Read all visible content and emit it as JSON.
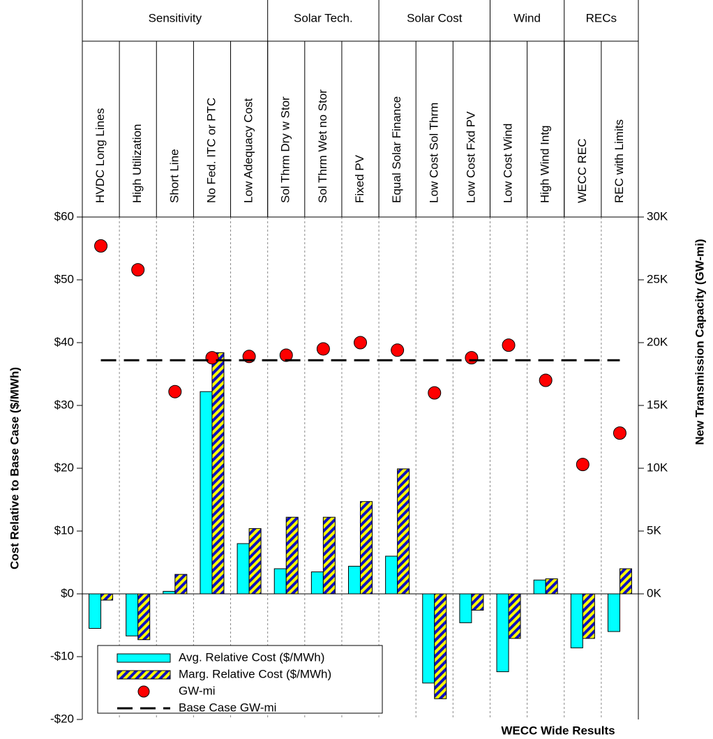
{
  "chart_data": {
    "type": "bar",
    "x_label": "WECC Wide Results",
    "y_label": "Cost Relative to Base Case ($/MWh)",
    "y2_label": "New Transmission Capacity (GW-mi)",
    "groups": [
      {
        "name": "Sensitivity",
        "span": 5
      },
      {
        "name": "Solar Tech.",
        "span": 3
      },
      {
        "name": "Solar Cost",
        "span": 3
      },
      {
        "name": "Wind",
        "span": 2
      },
      {
        "name": "RECs",
        "span": 2
      }
    ],
    "categories": [
      "HVDC Long Lines",
      "High Utilization",
      "Short Line",
      "No Fed. ITC or PTC",
      "Low Adequacy Cost",
      "Sol Thrm Dry w Stor",
      "Sol Thrm Wet no Stor",
      "Fixed PV",
      "Equal Solar Finance",
      "Low Cost Sol Thrm",
      "Low Cost Fxd PV",
      "Low Cost Wind",
      "High Wind Intg",
      "WECC REC",
      "REC with Limits"
    ],
    "series": [
      {
        "name": "Avg. Relative Cost ($/MWh)",
        "kind": "bar",
        "color": "#00ffff",
        "values": [
          -5.5,
          -6.7,
          0.4,
          32.2,
          8.0,
          4.0,
          3.5,
          4.4,
          6.0,
          -14.2,
          -4.6,
          -12.4,
          2.2,
          -8.6,
          -6.0
        ]
      },
      {
        "name": "Marg. Relative Cost ($/MWh)",
        "kind": "hatched-bar",
        "color": "#ffff00",
        "hatch_color": "#1010c0",
        "values": [
          -1.0,
          -7.3,
          3.1,
          38.4,
          10.4,
          12.2,
          12.2,
          14.7,
          19.9,
          -16.7,
          -2.6,
          -7.1,
          2.4,
          -7.1,
          4.0
        ]
      },
      {
        "name": "GW-mi",
        "kind": "dot",
        "axis": "y2",
        "color": "#ff0000",
        "values": [
          27700,
          25800,
          16100,
          18800,
          18900,
          19000,
          19500,
          20000,
          19400,
          16000,
          18800,
          19800,
          17000,
          10300,
          12800
        ]
      },
      {
        "name": "Base Case GW-mi",
        "kind": "hline",
        "axis": "y2",
        "color": "#000000",
        "value": 18600
      }
    ],
    "ylim": [
      -20,
      60
    ],
    "yticks": [
      {
        "value": -20,
        "label": "-$20"
      },
      {
        "value": -10,
        "label": "-$10"
      },
      {
        "value": 0,
        "label": "$0"
      },
      {
        "value": 10,
        "label": "$10"
      },
      {
        "value": 20,
        "label": "$20"
      },
      {
        "value": 30,
        "label": "$30"
      },
      {
        "value": 40,
        "label": "$40"
      },
      {
        "value": 50,
        "label": "$50"
      },
      {
        "value": 60,
        "label": "$60"
      }
    ],
    "y2lim": [
      -10000,
      30000
    ],
    "y2ticks": [
      {
        "value": 0,
        "label": "0K"
      },
      {
        "value": 5000,
        "label": "5K"
      },
      {
        "value": 10000,
        "label": "10K"
      },
      {
        "value": 15000,
        "label": "15K"
      },
      {
        "value": 20000,
        "label": "20K"
      },
      {
        "value": 25000,
        "label": "25K"
      },
      {
        "value": 30000,
        "label": "30K"
      }
    ]
  }
}
